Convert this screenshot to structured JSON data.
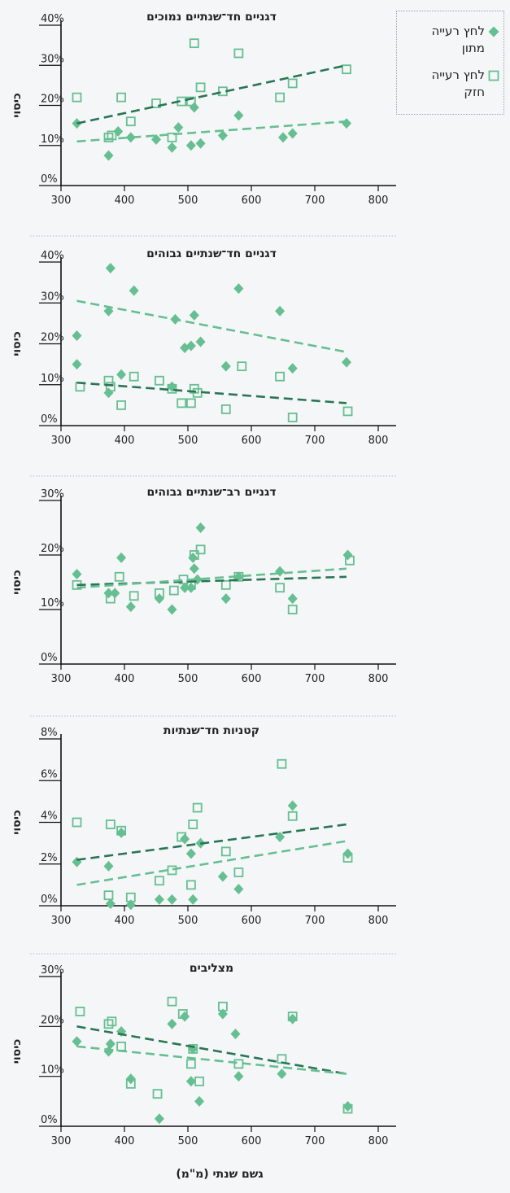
{
  "colors": {
    "dark": "#2a7553",
    "light": "#66bf91",
    "axis": "#111111",
    "panel_sep": "#b8bec3"
  },
  "legend": {
    "items": [
      {
        "label_line1": "לחץ רעייה",
        "label_line2": "מתון",
        "symbol": "filled-diamond",
        "series_key": "moderate"
      },
      {
        "label_line1": "לחץ רעייה",
        "label_line2": "חזק",
        "symbol": "open-square",
        "series_key": "heavy"
      }
    ]
  },
  "shared": {
    "ylabel": "כיסוי",
    "xlabel": "גשם שנתי (מ\"מ)",
    "xlim": [
      300,
      800
    ],
    "xticks": [
      300,
      400,
      500,
      600,
      700,
      800
    ]
  },
  "chart_data": [
    {
      "type": "scatter",
      "title": "דגניים חד־שנתיים נמוכים",
      "ylim": [
        0,
        40
      ],
      "yticks": [
        0,
        10,
        20,
        30,
        40
      ],
      "ytick_labels": [
        "0%",
        "10%",
        "20%",
        "30%",
        "40%"
      ],
      "series": [
        {
          "key": "moderate",
          "marker": "filled-diamond",
          "x": [
            325,
            375,
            390,
            410,
            450,
            475,
            485,
            505,
            510,
            520,
            555,
            580,
            650,
            665,
            750
          ],
          "y": [
            15.5,
            7.5,
            13.5,
            12,
            11.5,
            9.5,
            14.5,
            10,
            19.5,
            10.5,
            12.5,
            17.5,
            12,
            13,
            15.5
          ]
        },
        {
          "key": "heavy",
          "marker": "open-square",
          "x": [
            325,
            375,
            380,
            395,
            410,
            450,
            475,
            490,
            505,
            510,
            520,
            555,
            580,
            645,
            665,
            750
          ],
          "y": [
            22,
            12,
            12.5,
            22,
            16,
            20.5,
            12,
            21,
            21,
            35.5,
            24.5,
            23.5,
            33,
            22,
            25.5,
            29
          ]
        }
      ],
      "trendlines": [
        {
          "key": "heavy",
          "x": [
            325,
            750
          ],
          "y": [
            15.5,
            30
          ],
          "color_key": "dark"
        },
        {
          "key": "moderate",
          "x": [
            325,
            750
          ],
          "y": [
            11,
            16
          ],
          "color_key": "light"
        }
      ]
    },
    {
      "type": "scatter",
      "title": "דגניים חד־שנתיים גבוהים",
      "ylim": [
        0,
        40
      ],
      "yticks": [
        0,
        10,
        20,
        30,
        40
      ],
      "ytick_labels": [
        "0%",
        "10%",
        "20%",
        "30%",
        "40%"
      ],
      "series": [
        {
          "key": "moderate",
          "marker": "filled-diamond",
          "x": [
            325,
            325,
            375,
            375,
            378,
            395,
            415,
            475,
            480,
            495,
            505,
            510,
            520,
            560,
            580,
            645,
            665,
            750
          ],
          "y": [
            22,
            15,
            8,
            28,
            38.5,
            12.5,
            33,
            9.5,
            26,
            19,
            19.5,
            27,
            20.5,
            14.5,
            33.5,
            28,
            14,
            15.5
          ]
        },
        {
          "key": "heavy",
          "marker": "open-square",
          "x": [
            330,
            375,
            378,
            395,
            415,
            455,
            475,
            490,
            505,
            510,
            515,
            560,
            585,
            645,
            665,
            752
          ],
          "y": [
            9.5,
            11,
            9.5,
            5,
            12,
            11,
            9,
            5.5,
            5.5,
            9,
            8,
            4,
            14.5,
            12,
            2,
            3.5
          ]
        }
      ],
      "trendlines": [
        {
          "key": "moderate",
          "x": [
            325,
            750
          ],
          "y": [
            30.5,
            18
          ],
          "color_key": "light"
        },
        {
          "key": "heavy",
          "x": [
            325,
            750
          ],
          "y": [
            10.5,
            5.5
          ],
          "color_key": "dark"
        }
      ]
    },
    {
      "type": "scatter",
      "title": "דגניים רב־שנתיים גבוהים",
      "ylim": [
        0,
        30
      ],
      "yticks": [
        0,
        10,
        20,
        30
      ],
      "ytick_labels": [
        "0%",
        "10%",
        "20%",
        "30%"
      ],
      "series": [
        {
          "key": "moderate",
          "marker": "filled-diamond",
          "x": [
            325,
            375,
            385,
            395,
            410,
            455,
            475,
            495,
            505,
            508,
            510,
            515,
            520,
            560,
            580,
            645,
            665,
            752
          ],
          "y": [
            16.5,
            13,
            13,
            19.5,
            10.5,
            12,
            10,
            14,
            14,
            19.5,
            17.5,
            15.5,
            25,
            12,
            16,
            17,
            12,
            20
          ]
        },
        {
          "key": "heavy",
          "marker": "open-square",
          "x": [
            325,
            378,
            392,
            415,
            455,
            478,
            493,
            505,
            510,
            520,
            560,
            580,
            645,
            665,
            755
          ],
          "y": [
            14.5,
            12,
            16,
            12.5,
            13,
            13.5,
            15.5,
            14.5,
            20,
            21,
            14.5,
            16,
            14,
            10,
            19
          ]
        }
      ],
      "trendlines": [
        {
          "key": "heavy",
          "x": [
            325,
            750
          ],
          "y": [
            14.5,
            16
          ],
          "color_key": "dark"
        },
        {
          "key": "moderate",
          "x": [
            325,
            750
          ],
          "y": [
            14,
            17.5
          ],
          "color_key": "light"
        }
      ]
    },
    {
      "type": "scatter",
      "title": "קטניות חד־שנתיות",
      "ylim": [
        0,
        8
      ],
      "yticks": [
        0,
        2,
        4,
        6,
        8
      ],
      "ytick_labels": [
        "0%",
        "2%",
        "4%",
        "6%",
        "8%"
      ],
      "series": [
        {
          "key": "moderate",
          "marker": "filled-diamond",
          "x": [
            325,
            375,
            378,
            395,
            410,
            455,
            475,
            495,
            505,
            508,
            520,
            555,
            580,
            645,
            665,
            752
          ],
          "y": [
            2.1,
            1.9,
            0.1,
            3.5,
            0.05,
            0.3,
            0.3,
            3.2,
            2.5,
            0.3,
            3,
            1.4,
            0.8,
            3.3,
            4.8,
            2.5
          ]
        },
        {
          "key": "heavy",
          "marker": "open-square",
          "x": [
            325,
            375,
            378,
            395,
            410,
            455,
            475,
            490,
            505,
            508,
            515,
            560,
            580,
            648,
            665,
            752
          ],
          "y": [
            4,
            0.5,
            3.9,
            3.6,
            0.4,
            1.2,
            1.7,
            3.3,
            1,
            3.9,
            4.7,
            2.6,
            1.6,
            6.8,
            4.3,
            2.3
          ]
        }
      ],
      "trendlines": [
        {
          "key": "heavy",
          "x": [
            325,
            750
          ],
          "y": [
            2.2,
            3.9
          ],
          "color_key": "dark"
        },
        {
          "key": "moderate",
          "x": [
            325,
            750
          ],
          "y": [
            1,
            3.1
          ],
          "color_key": "light"
        }
      ]
    },
    {
      "type": "scatter",
      "title": "מצליבים",
      "ylim": [
        0,
        30
      ],
      "yticks": [
        0,
        10,
        20,
        30
      ],
      "ytick_labels": [
        "0%",
        "10%",
        "20%",
        "30%"
      ],
      "series": [
        {
          "key": "moderate",
          "marker": "filled-diamond",
          "x": [
            325,
            375,
            378,
            395,
            410,
            455,
            475,
            495,
            505,
            508,
            518,
            555,
            575,
            580,
            648,
            665,
            752
          ],
          "y": [
            17,
            15,
            16.5,
            19,
            9.5,
            1.5,
            20.5,
            22,
            9,
            15.5,
            5,
            22.5,
            18.5,
            10,
            10.5,
            21.5,
            4
          ]
        },
        {
          "key": "heavy",
          "marker": "open-square",
          "x": [
            330,
            375,
            380,
            395,
            410,
            452,
            475,
            492,
            505,
            508,
            518,
            555,
            580,
            648,
            665,
            752
          ],
          "y": [
            23,
            20.5,
            21,
            16,
            8.5,
            6.5,
            25,
            22.5,
            12.5,
            15.5,
            9,
            24,
            12.5,
            13.5,
            22,
            3.5
          ]
        }
      ],
      "trendlines": [
        {
          "key": "heavy",
          "x": [
            325,
            750
          ],
          "y": [
            20,
            10.5
          ],
          "color_key": "dark"
        },
        {
          "key": "moderate",
          "x": [
            325,
            750
          ],
          "y": [
            16,
            10.5
          ],
          "color_key": "light"
        }
      ]
    }
  ]
}
